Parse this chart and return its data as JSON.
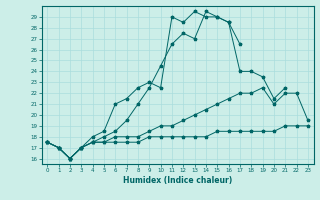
{
  "title": "",
  "xlabel": "Humidex (Indice chaleur)",
  "bg_color": "#cceee8",
  "grid_color": "#aadddd",
  "line_color": "#006666",
  "xlim": [
    -0.5,
    23.5
  ],
  "ylim": [
    15.5,
    30.0
  ],
  "xticks": [
    0,
    1,
    2,
    3,
    4,
    5,
    6,
    7,
    8,
    9,
    10,
    11,
    12,
    13,
    14,
    15,
    16,
    17,
    18,
    19,
    20,
    21,
    22,
    23
  ],
  "yticks": [
    16,
    17,
    18,
    19,
    20,
    21,
    22,
    23,
    24,
    25,
    26,
    27,
    28,
    29
  ],
  "series": [
    {
      "x": [
        0,
        1,
        2,
        3,
        4,
        5,
        6,
        7,
        8,
        9,
        10,
        11,
        12,
        13,
        14,
        15,
        16,
        17,
        18,
        19,
        20,
        21,
        22,
        23
      ],
      "y": [
        17.5,
        17.0,
        16.0,
        17.0,
        17.5,
        17.5,
        17.5,
        17.5,
        17.5,
        18.0,
        18.0,
        18.0,
        18.0,
        18.0,
        18.0,
        18.5,
        18.5,
        18.5,
        18.5,
        18.5,
        18.5,
        19.0,
        19.0,
        19.0
      ]
    },
    {
      "x": [
        0,
        1,
        2,
        3,
        4,
        5,
        6,
        7,
        8,
        9,
        10,
        11,
        12,
        13,
        14,
        15,
        16,
        17,
        18,
        19,
        20,
        21,
        22,
        23
      ],
      "y": [
        17.5,
        17.0,
        16.0,
        17.0,
        17.5,
        17.5,
        18.0,
        18.0,
        18.0,
        18.5,
        19.0,
        19.0,
        19.5,
        20.0,
        20.5,
        21.0,
        21.5,
        22.0,
        22.0,
        22.5,
        21.0,
        22.0,
        22.0,
        19.5
      ]
    },
    {
      "x": [
        0,
        1,
        2,
        3,
        4,
        5,
        6,
        7,
        8,
        9,
        10,
        11,
        12,
        13,
        14,
        15,
        16,
        17,
        18,
        19,
        20,
        21,
        22,
        23
      ],
      "y": [
        17.5,
        17.0,
        16.0,
        17.0,
        17.5,
        18.0,
        18.5,
        19.5,
        21.0,
        22.5,
        24.5,
        26.5,
        27.5,
        27.0,
        29.5,
        29.0,
        28.5,
        24.0,
        24.0,
        23.5,
        21.5,
        22.5,
        null,
        null
      ]
    },
    {
      "x": [
        0,
        1,
        2,
        3,
        4,
        5,
        6,
        7,
        8,
        9,
        10,
        11,
        12,
        13,
        14,
        15,
        16,
        17,
        18,
        19,
        20,
        21,
        22,
        23
      ],
      "y": [
        17.5,
        17.0,
        16.0,
        17.0,
        18.0,
        18.5,
        21.0,
        21.5,
        22.5,
        23.0,
        22.5,
        29.0,
        28.5,
        29.5,
        29.0,
        29.0,
        28.5,
        26.5,
        null,
        null,
        null,
        null,
        null,
        null
      ]
    }
  ]
}
